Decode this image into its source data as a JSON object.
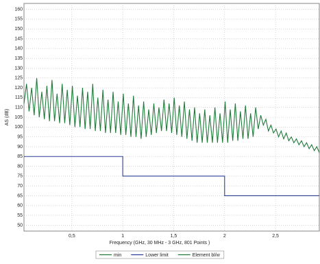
{
  "chart_data": {
    "type": "line",
    "xlabel": "Frequency (GHz, 30 MHz - 3 GHz, 801 Points )",
    "ylabel": "AS (dB)",
    "xlim": [
      0.03,
      2.93
    ],
    "ylim": [
      47,
      163
    ],
    "xticks": [
      {
        "value": 0.5,
        "label": "0,5"
      },
      1,
      {
        "value": 1.5,
        "label": "1,5"
      },
      2,
      {
        "value": 2.5,
        "label": "2,5"
      }
    ],
    "yticks": [
      50,
      55,
      60,
      65,
      70,
      75,
      80,
      85,
      90,
      95,
      100,
      105,
      110,
      115,
      120,
      125,
      130,
      135,
      140,
      145,
      150,
      155,
      160
    ],
    "grid": true,
    "legend": "bottom",
    "series": [
      {
        "name": "min",
        "color": "#1f7a3a",
        "x": [],
        "values": []
      },
      {
        "name": "Lower limit",
        "color": "#2b3f9a",
        "x": [
          0.03,
          1,
          1,
          2,
          2,
          2.93
        ],
        "values": [
          85,
          85,
          75,
          75,
          65,
          65
        ]
      },
      {
        "name": "Element bl/w",
        "color": "#1f7a3a",
        "x": [
          0.03,
          0.055,
          0.08,
          0.105,
          0.13,
          0.155,
          0.18,
          0.205,
          0.23,
          0.255,
          0.28,
          0.305,
          0.33,
          0.355,
          0.38,
          0.405,
          0.43,
          0.455,
          0.48,
          0.505,
          0.53,
          0.555,
          0.58,
          0.605,
          0.63,
          0.655,
          0.68,
          0.705,
          0.73,
          0.755,
          0.78,
          0.805,
          0.83,
          0.855,
          0.88,
          0.905,
          0.93,
          0.955,
          0.98,
          1.005,
          1.03,
          1.055,
          1.08,
          1.105,
          1.13,
          1.155,
          1.18,
          1.205,
          1.23,
          1.255,
          1.28,
          1.305,
          1.33,
          1.355,
          1.38,
          1.405,
          1.43,
          1.455,
          1.48,
          1.505,
          1.53,
          1.555,
          1.58,
          1.605,
          1.63,
          1.655,
          1.68,
          1.705,
          1.73,
          1.755,
          1.78,
          1.805,
          1.83,
          1.855,
          1.88,
          1.905,
          1.93,
          1.955,
          1.98,
          2.005,
          2.03,
          2.055,
          2.08,
          2.105,
          2.13,
          2.155,
          2.18,
          2.205,
          2.23,
          2.255,
          2.28,
          2.305,
          2.33,
          2.355,
          2.38,
          2.405,
          2.43,
          2.455,
          2.48,
          2.505,
          2.53,
          2.555,
          2.58,
          2.605,
          2.63,
          2.655,
          2.68,
          2.705,
          2.73,
          2.755,
          2.78,
          2.805,
          2.83,
          2.855,
          2.88,
          2.905,
          2.93
        ],
        "values": [
          112,
          122,
          108,
          120,
          106,
          125,
          105,
          118,
          104,
          121,
          103,
          124,
          103,
          117,
          102,
          122,
          102,
          119,
          101,
          121,
          100,
          116,
          100,
          120,
          99,
          118,
          99,
          122,
          98,
          115,
          98,
          119,
          97,
          114,
          97,
          118,
          97,
          113,
          96,
          117,
          96,
          112,
          95,
          116,
          95,
          111,
          94,
          113,
          95,
          109,
          96,
          112,
          97,
          110,
          98,
          114,
          98,
          112,
          97,
          115,
          96,
          111,
          95,
          113,
          94,
          109,
          93,
          110,
          92,
          107,
          92,
          109,
          92,
          106,
          92,
          110,
          92,
          107,
          92,
          113,
          92,
          109,
          93,
          112,
          93,
          108,
          94,
          111,
          94,
          107,
          95,
          110,
          99,
          106,
          101,
          104,
          98,
          101,
          97,
          99,
          95,
          98,
          94,
          97,
          93,
          95,
          92,
          94,
          91,
          93,
          90,
          92,
          89,
          91,
          88,
          90,
          87
        ]
      }
    ]
  }
}
